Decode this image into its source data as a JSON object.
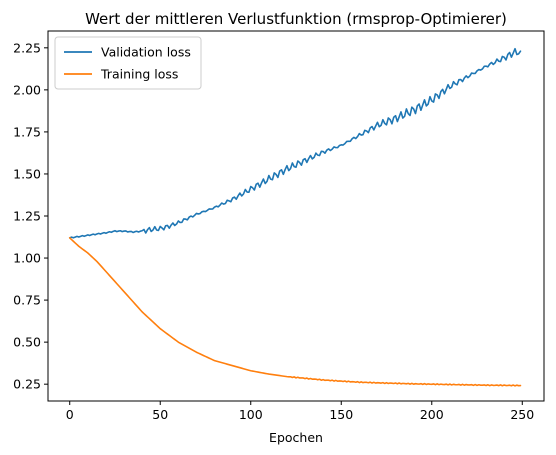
{
  "chart_data": {
    "type": "line",
    "title": "Wert der mittleren Verlustfunktion (rmsprop-Optimierer)",
    "xlabel": "Epochen",
    "ylabel": "",
    "xlim": [
      -12,
      262
    ],
    "ylim": [
      0.15,
      2.35
    ],
    "xticks": [
      0,
      50,
      100,
      150,
      200,
      250
    ],
    "xtick_labels": [
      "0",
      "50",
      "100",
      "150",
      "200",
      "250"
    ],
    "yticks": [
      0.25,
      0.5,
      0.75,
      1.0,
      1.25,
      1.5,
      1.75,
      2.0,
      2.25
    ],
    "ytick_labels": [
      "0.25",
      "0.50",
      "0.75",
      "1.00",
      "1.25",
      "1.50",
      "1.75",
      "2.00",
      "2.25"
    ],
    "grid": false,
    "legend_position": "top-left",
    "series": [
      {
        "name": "Validation loss",
        "color": "#1f77b4",
        "x": [
          0,
          10,
          20,
          25,
          30,
          35,
          40,
          45,
          50,
          55,
          60,
          70,
          80,
          90,
          100,
          110,
          120,
          130,
          140,
          150,
          160,
          170,
          180,
          190,
          200,
          210,
          220,
          230,
          240,
          245,
          249
        ],
        "y": [
          1.12,
          1.135,
          1.15,
          1.16,
          1.16,
          1.155,
          1.16,
          1.17,
          1.175,
          1.19,
          1.21,
          1.26,
          1.3,
          1.35,
          1.41,
          1.47,
          1.53,
          1.58,
          1.63,
          1.67,
          1.73,
          1.79,
          1.83,
          1.88,
          1.94,
          2.02,
          2.08,
          2.14,
          2.19,
          2.22,
          2.23
        ]
      },
      {
        "name": "Training loss",
        "color": "#ff7f0e",
        "x": [
          0,
          5,
          10,
          15,
          20,
          25,
          30,
          35,
          40,
          45,
          50,
          55,
          60,
          70,
          80,
          90,
          100,
          110,
          120,
          130,
          140,
          150,
          160,
          170,
          180,
          190,
          200,
          210,
          220,
          230,
          240,
          249
        ],
        "y": [
          1.12,
          1.07,
          1.03,
          0.98,
          0.92,
          0.86,
          0.8,
          0.74,
          0.68,
          0.63,
          0.58,
          0.54,
          0.5,
          0.44,
          0.39,
          0.36,
          0.33,
          0.31,
          0.295,
          0.285,
          0.275,
          0.268,
          0.262,
          0.258,
          0.255,
          0.252,
          0.25,
          0.248,
          0.246,
          0.244,
          0.243,
          0.242
        ]
      }
    ]
  }
}
